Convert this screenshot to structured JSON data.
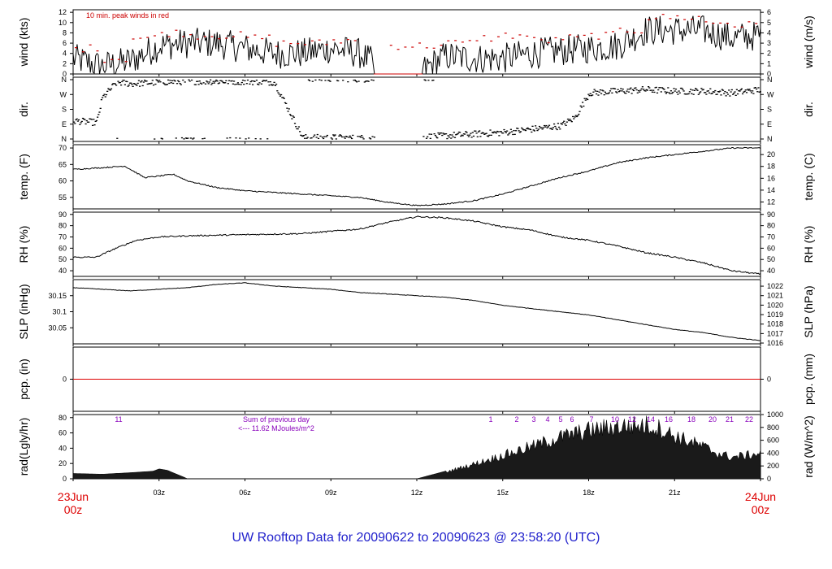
{
  "title": "UW Rooftop Data for 20090622  to  20090623 @ 23:58:20  (UTC)",
  "colors": {
    "peak": "#cc0000",
    "zero_line": "#dd0000",
    "note": "#8800bb",
    "title": "#2222cc",
    "start_end": "#dd0000",
    "series": "#000000"
  },
  "x_axis": {
    "ticks": [
      "03z",
      "06z",
      "09z",
      "12z",
      "15z",
      "18z",
      "21z"
    ],
    "start": [
      "23Jun",
      "00z"
    ],
    "end": [
      "24Jun",
      "00z"
    ]
  },
  "chart_data": [
    {
      "id": "wind",
      "type": "line",
      "left_label": "wind (kts)",
      "right_label": "wind (m/s)",
      "left_ticks": [
        0,
        2,
        4,
        6,
        8,
        10,
        12
      ],
      "right_ticks": [
        0,
        1,
        2,
        3,
        4,
        5,
        6
      ],
      "ylim": [
        0,
        12.5
      ],
      "annotation": "10 min. peak winds in red",
      "x_hours": [
        0,
        1,
        2,
        3,
        4,
        5,
        6,
        7,
        8,
        9,
        10,
        11,
        12,
        13,
        14,
        15,
        16,
        17,
        18,
        19,
        20,
        21,
        22,
        23,
        24
      ],
      "y": [
        3,
        1.5,
        2.5,
        5.5,
        6,
        6,
        5,
        4,
        4,
        5,
        4,
        0,
        0,
        3.5,
        3,
        3,
        4,
        4.5,
        5,
        5.5,
        8.5,
        8.5,
        8.5,
        7,
        7.5
      ],
      "peak_x_hours": [
        0.5,
        1.5,
        2.5,
        3.5,
        4.5,
        5.5,
        6.5,
        7.5,
        8.5,
        9.5,
        11.5,
        12.5,
        13.5,
        14.5,
        15.5,
        16.5,
        17.5,
        18.5,
        19.5,
        20.5,
        21.5,
        22.5,
        23.5
      ],
      "peak": [
        5,
        3,
        7,
        8,
        7.5,
        7.5,
        7,
        6,
        6,
        6.5,
        5.5,
        5.5,
        6,
        7,
        7.5,
        6.5,
        7,
        7.5,
        8.5,
        11,
        11,
        10,
        9.5
      ]
    },
    {
      "id": "dir",
      "type": "scatter",
      "left_label": "dir.",
      "right_label": "dir.",
      "left_ticks": [
        "N",
        "E",
        "S",
        "W",
        "N"
      ],
      "right_ticks": [
        "N",
        "E",
        "S",
        "W",
        "N"
      ],
      "ylim": [
        0,
        360
      ],
      "x_hours": [
        0,
        0.8,
        1,
        1.5,
        2,
        3,
        4,
        5,
        6,
        7,
        8,
        9,
        10,
        11,
        12,
        13,
        14,
        15,
        16,
        17,
        17.5,
        18,
        19,
        20,
        21,
        22,
        23,
        24
      ],
      "y_degrees": [
        110,
        100,
        250,
        345,
        335,
        345,
        350,
        350,
        350,
        345,
        8,
        8,
        5,
        5,
        10,
        20,
        30,
        40,
        60,
        80,
        130,
        280,
        290,
        300,
        290,
        290,
        280,
        300
      ]
    },
    {
      "id": "temp",
      "type": "line",
      "left_label": "temp. (F)",
      "right_label": "temp. (C)",
      "left_ticks": [
        55,
        60,
        65,
        70
      ],
      "right_ticks": [
        12,
        14,
        16,
        18,
        20
      ],
      "ylim": [
        51.5,
        71
      ],
      "x_hours": [
        0,
        1,
        1.8,
        2.5,
        3,
        3.5,
        4,
        5,
        6,
        7,
        8,
        9,
        10,
        11,
        12,
        13,
        14,
        15,
        16,
        17,
        18,
        19,
        20,
        21,
        22,
        23,
        24
      ],
      "y": [
        63.5,
        64,
        64.5,
        61,
        61.5,
        62,
        60,
        58,
        57,
        56.5,
        56,
        55.5,
        55,
        53.5,
        52.5,
        53,
        54,
        56,
        58.5,
        61,
        63,
        65.5,
        67,
        68,
        69,
        70,
        70
      ]
    },
    {
      "id": "rh",
      "type": "line",
      "left_label": "RH (%)",
      "right_label": "RH (%)",
      "left_ticks": [
        40,
        50,
        60,
        70,
        80,
        90
      ],
      "right_ticks": [
        40,
        50,
        60,
        70,
        80,
        90
      ],
      "ylim": [
        35,
        92
      ],
      "x_hours": [
        0,
        0.8,
        1.5,
        2.2,
        3,
        4,
        6,
        8,
        10,
        11,
        12,
        13,
        14,
        15,
        16,
        17,
        18,
        19,
        20,
        21,
        22,
        23,
        24
      ],
      "y": [
        52,
        52,
        60,
        67,
        70,
        71,
        72,
        73,
        77,
        83,
        88,
        87,
        84,
        79,
        76,
        70,
        67,
        62,
        56,
        52,
        47,
        40,
        37
      ]
    },
    {
      "id": "slp",
      "type": "line",
      "left_label": "SLP (inHg)",
      "right_label": "SLP (hPa)",
      "left_ticks": [
        30.05,
        30.1,
        30.15
      ],
      "right_ticks": [
        1016,
        1017,
        1018,
        1019,
        1020,
        1021,
        1022
      ],
      "ylim": [
        30.0,
        30.2
      ],
      "x_hours": [
        0,
        2,
        4,
        5,
        6,
        7,
        8,
        9,
        10,
        12,
        13,
        14,
        15,
        16,
        17,
        18,
        19,
        20,
        21,
        22,
        23,
        24
      ],
      "y": [
        30.175,
        30.165,
        30.175,
        30.185,
        30.19,
        30.18,
        30.175,
        30.17,
        30.16,
        30.15,
        30.145,
        30.135,
        30.12,
        30.11,
        30.1,
        30.09,
        30.075,
        30.06,
        30.045,
        30.035,
        30.02,
        30.01
      ]
    },
    {
      "id": "pcp",
      "type": "line",
      "left_label": "pcp. (in)",
      "right_label": "pcp. (mm)",
      "left_ticks": [
        0
      ],
      "right_ticks": [
        0
      ],
      "ylim": [
        -1,
        1
      ],
      "x_hours": [
        0,
        24
      ],
      "y": [
        0,
        0
      ]
    },
    {
      "id": "rad",
      "type": "area",
      "left_label": "rad(Lgly/hr)",
      "right_label": "rad (W/m^2)",
      "left_ticks": [
        0,
        20,
        40,
        60,
        80
      ],
      "right_ticks": [
        0,
        200,
        400,
        600,
        800,
        1000
      ],
      "ylim": [
        0,
        84
      ],
      "annotation_lines": [
        "Sum of previous day",
        "<--- 11.62 MJoules/m^2"
      ],
      "hour_labels": [
        "11",
        "1",
        "2",
        "3",
        "4",
        "5",
        "6",
        "7",
        "8",
        "10",
        "12",
        "14",
        "16",
        "18",
        "20",
        "21",
        "22"
      ],
      "hour_label_x": [
        -10,
        -22,
        -21,
        -20,
        -19,
        -18,
        -17,
        -16,
        -15,
        -14,
        -12,
        -10,
        -8,
        -6,
        -4,
        -3,
        -2
      ],
      "x_hours": [
        0,
        1,
        2,
        2.8,
        3,
        3.3,
        4,
        12,
        13,
        14,
        15,
        16,
        17,
        18,
        19,
        20,
        20.5,
        21,
        22,
        22.5,
        23,
        24
      ],
      "y": [
        7,
        6,
        8,
        10,
        13,
        11,
        0,
        0,
        10,
        22,
        35,
        48,
        62,
        72,
        78,
        80,
        75,
        64,
        48,
        38,
        32,
        38
      ]
    }
  ]
}
